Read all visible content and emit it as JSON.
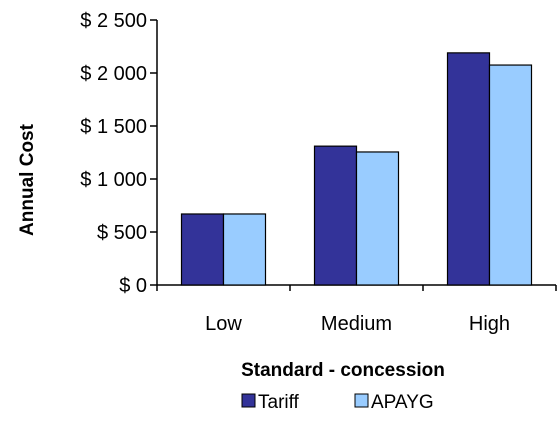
{
  "chart_data": {
    "type": "bar",
    "title": "",
    "xlabel": "Standard - concession",
    "ylabel": "Annual Cost",
    "categories": [
      "Low",
      "Medium",
      "High"
    ],
    "series": [
      {
        "name": "Tariff",
        "values": [
          670,
          1310,
          2190
        ]
      },
      {
        "name": "APAYG",
        "values": [
          670,
          1255,
          2075
        ]
      }
    ],
    "ylim": [
      0,
      2500
    ],
    "yticks": [
      0,
      500,
      1000,
      1500,
      2000,
      2500
    ],
    "ytick_labels": [
      "$ 0",
      "$ 500",
      "$ 1 000",
      "$ 1 500",
      "$ 2 000",
      "$ 2 500"
    ],
    "grid": false,
    "legend_position": "bottom",
    "colors": {
      "Tariff": "#333399",
      "APAYG": "#99CCFF",
      "bar_outline": "#000000",
      "axis": "#000000"
    }
  }
}
